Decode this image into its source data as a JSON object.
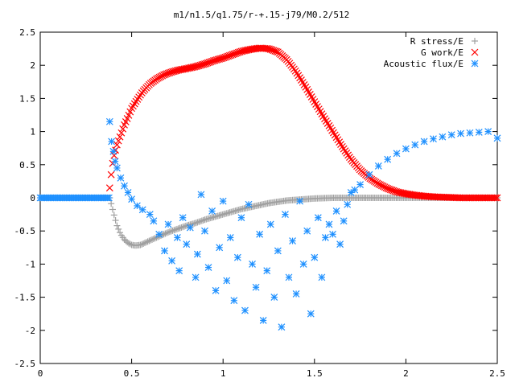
{
  "chart_data": {
    "type": "scatter",
    "title": "m1/n1.5/q1.75/r-+.15-j79/M0.2/512",
    "xlabel": "",
    "ylabel": "",
    "xlim": [
      0,
      2.5
    ],
    "ylim": [
      -2.5,
      2.5
    ],
    "x_ticks": [
      "0",
      "0.5",
      "1",
      "1.5",
      "2",
      "2.5"
    ],
    "y_ticks": [
      "2.5",
      "2",
      "1.5",
      "1",
      "0.5",
      "0",
      "-0.5",
      "-1",
      "-1.5",
      "-2",
      "-2.5"
    ],
    "legend_position": "top-right",
    "grid": false,
    "series": [
      {
        "name": "R stress/E",
        "marker": "plus",
        "color": "#a0a0a0",
        "x": [
          0.38,
          0.4,
          0.42,
          0.44,
          0.46,
          0.48,
          0.5,
          0.52,
          0.55,
          0.58,
          0.62,
          0.66,
          0.7,
          0.75,
          0.8,
          0.85,
          0.9,
          0.95,
          1.0,
          1.05,
          1.1,
          1.15,
          1.2,
          1.25,
          1.3,
          1.35,
          1.4,
          1.45,
          1.5,
          1.55,
          1.6,
          1.65,
          1.7,
          1.75,
          1.8,
          1.85,
          1.9,
          1.95,
          2.0,
          2.05,
          2.1,
          2.15,
          2.2,
          2.25,
          2.3,
          2.35,
          2.4,
          2.45,
          2.5
        ],
        "values": [
          0.0,
          -0.22,
          -0.42,
          -0.55,
          -0.63,
          -0.68,
          -0.71,
          -0.72,
          -0.71,
          -0.67,
          -0.62,
          -0.57,
          -0.52,
          -0.47,
          -0.42,
          -0.38,
          -0.33,
          -0.29,
          -0.25,
          -0.21,
          -0.17,
          -0.14,
          -0.11,
          -0.08,
          -0.06,
          -0.04,
          -0.03,
          -0.02,
          -0.01,
          -0.005,
          0.0,
          0.0,
          0.0,
          0.0,
          0.0,
          0.0,
          0.0,
          0.0,
          0.0,
          0.0,
          0.0,
          0.0,
          0.0,
          0.0,
          0.0,
          0.0,
          0.0,
          0.0,
          0.0
        ]
      },
      {
        "name": "G work/E",
        "marker": "cross",
        "color": "#ff0000",
        "x": [
          0.38,
          0.39,
          0.4,
          0.42,
          0.44,
          0.46,
          0.48,
          0.5,
          0.53,
          0.56,
          0.6,
          0.64,
          0.68,
          0.72,
          0.76,
          0.8,
          0.85,
          0.9,
          0.95,
          1.0,
          1.05,
          1.1,
          1.15,
          1.2,
          1.25,
          1.3,
          1.35,
          1.4,
          1.45,
          1.5,
          1.55,
          1.6,
          1.65,
          1.7,
          1.75,
          1.8,
          1.85,
          1.9,
          1.95,
          2.0,
          2.05,
          2.1,
          2.15,
          2.2,
          2.25,
          2.3,
          2.35,
          2.4,
          2.45,
          2.5
        ],
        "values": [
          0.15,
          0.4,
          0.6,
          0.8,
          0.95,
          1.1,
          1.22,
          1.35,
          1.48,
          1.6,
          1.72,
          1.8,
          1.86,
          1.9,
          1.93,
          1.95,
          1.98,
          2.02,
          2.07,
          2.11,
          2.16,
          2.21,
          2.24,
          2.26,
          2.25,
          2.2,
          2.08,
          1.9,
          1.68,
          1.45,
          1.22,
          1.0,
          0.78,
          0.58,
          0.42,
          0.3,
          0.21,
          0.14,
          0.09,
          0.06,
          0.04,
          0.025,
          0.015,
          0.01,
          0.005,
          0.0,
          0.0,
          0.0,
          0.0,
          0.0
        ]
      },
      {
        "name": "Acoustic flux/E",
        "marker": "star",
        "color": "#1e90ff",
        "x": [
          0.38,
          0.39,
          0.4,
          0.41,
          0.42,
          0.44,
          0.46,
          0.48,
          0.5,
          0.53,
          0.56,
          0.6,
          0.62,
          0.65,
          0.68,
          0.7,
          0.72,
          0.75,
          0.76,
          0.78,
          0.8,
          0.82,
          0.85,
          0.86,
          0.88,
          0.9,
          0.92,
          0.94,
          0.96,
          0.98,
          1.0,
          1.02,
          1.04,
          1.06,
          1.08,
          1.1,
          1.12,
          1.14,
          1.16,
          1.18,
          1.2,
          1.22,
          1.24,
          1.26,
          1.28,
          1.3,
          1.32,
          1.34,
          1.36,
          1.38,
          1.4,
          1.42,
          1.44,
          1.46,
          1.48,
          1.5,
          1.52,
          1.54,
          1.56,
          1.58,
          1.6,
          1.62,
          1.64,
          1.66,
          1.68,
          1.7,
          1.72,
          1.75,
          1.8,
          1.85,
          1.9,
          1.95,
          2.0,
          2.05,
          2.1,
          2.15,
          2.2,
          2.25,
          2.3,
          2.35,
          2.4,
          2.45,
          2.5
        ],
        "values": [
          1.15,
          0.85,
          0.7,
          0.55,
          0.45,
          0.3,
          0.18,
          0.08,
          -0.02,
          -0.12,
          -0.18,
          -0.25,
          -0.35,
          -0.55,
          -0.8,
          -0.4,
          -0.95,
          -0.6,
          -1.1,
          -0.3,
          -0.7,
          -0.45,
          -1.2,
          -0.85,
          0.05,
          -0.5,
          -1.05,
          -0.2,
          -1.4,
          -0.75,
          -0.05,
          -1.25,
          -0.6,
          -1.55,
          -0.9,
          -0.3,
          -1.7,
          -0.1,
          -1.0,
          -1.35,
          -0.55,
          -1.85,
          -1.1,
          -0.4,
          -1.5,
          -0.8,
          -1.95,
          -0.25,
          -1.2,
          -0.65,
          -1.45,
          -0.05,
          -1.0,
          -0.5,
          -1.75,
          -0.9,
          -0.3,
          -1.2,
          -0.6,
          -0.4,
          -0.55,
          -0.2,
          -0.7,
          -0.35,
          -0.1,
          0.08,
          0.12,
          0.2,
          0.35,
          0.48,
          0.58,
          0.67,
          0.74,
          0.8,
          0.85,
          0.89,
          0.92,
          0.95,
          0.97,
          0.98,
          0.99,
          1.0,
          0.9
        ]
      }
    ]
  }
}
